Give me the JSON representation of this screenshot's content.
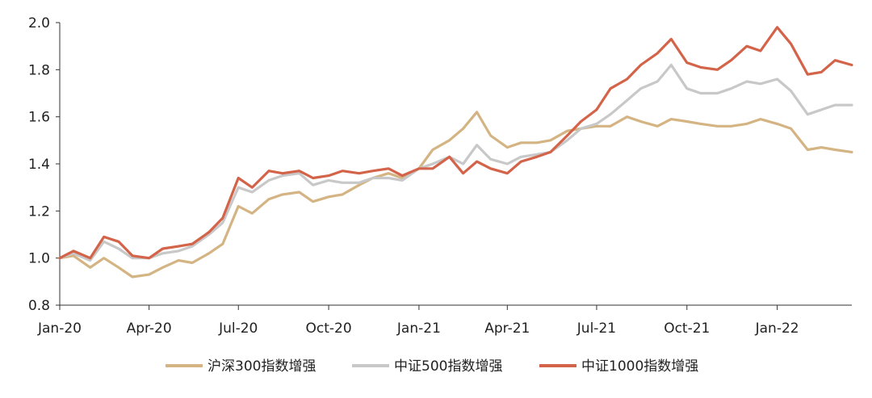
{
  "chart_data": {
    "type": "line",
    "title": "",
    "xlabel": "",
    "ylabel": "",
    "ylim": [
      0.8,
      2.0
    ],
    "yticks": [
      0.8,
      1.0,
      1.2,
      1.4,
      1.6,
      1.8,
      2.0
    ],
    "ytick_labels": [
      "0.8",
      "1.0",
      "1.2",
      "1.4",
      "1.6",
      "1.8",
      "2.0"
    ],
    "xlim": [
      "2020-01-01",
      "2022-03-18"
    ],
    "xticks": [
      "2020-01-01",
      "2020-04-01",
      "2020-07-01",
      "2020-10-01",
      "2021-01-01",
      "2021-04-01",
      "2021-07-01",
      "2021-10-01",
      "2022-01-01"
    ],
    "xtick_labels": [
      "Jan-20",
      "Apr-20",
      "Jul-20",
      "Oct-20",
      "Jan-21",
      "Apr-21",
      "Jul-21",
      "Oct-21",
      "Jan-22"
    ],
    "grid": false,
    "legend_position": "bottom",
    "x": [
      "2020-01-01",
      "2020-01-15",
      "2020-02-01",
      "2020-02-15",
      "2020-03-01",
      "2020-03-15",
      "2020-04-01",
      "2020-04-15",
      "2020-05-01",
      "2020-05-15",
      "2020-06-01",
      "2020-06-15",
      "2020-07-01",
      "2020-07-15",
      "2020-08-01",
      "2020-08-15",
      "2020-09-01",
      "2020-09-15",
      "2020-10-01",
      "2020-10-15",
      "2020-11-01",
      "2020-11-15",
      "2020-12-01",
      "2020-12-15",
      "2021-01-01",
      "2021-01-15",
      "2021-02-01",
      "2021-02-15",
      "2021-03-01",
      "2021-03-15",
      "2021-04-01",
      "2021-04-15",
      "2021-05-01",
      "2021-05-15",
      "2021-06-01",
      "2021-06-15",
      "2021-07-01",
      "2021-07-15",
      "2021-08-01",
      "2021-08-15",
      "2021-09-01",
      "2021-09-15",
      "2021-10-01",
      "2021-10-15",
      "2021-11-01",
      "2021-11-15",
      "2021-12-01",
      "2021-12-15",
      "2022-01-01",
      "2022-01-15",
      "2022-02-01",
      "2022-02-15",
      "2022-03-01",
      "2022-03-18"
    ],
    "series": [
      {
        "name": "沪深300指数增强",
        "color": "#D4B483",
        "values": [
          1.0,
          1.01,
          0.96,
          1.0,
          0.96,
          0.92,
          0.93,
          0.96,
          0.99,
          0.98,
          1.02,
          1.06,
          1.22,
          1.19,
          1.25,
          1.27,
          1.28,
          1.24,
          1.26,
          1.27,
          1.31,
          1.34,
          1.36,
          1.34,
          1.38,
          1.46,
          1.5,
          1.55,
          1.62,
          1.52,
          1.47,
          1.49,
          1.49,
          1.5,
          1.54,
          1.55,
          1.56,
          1.56,
          1.6,
          1.58,
          1.56,
          1.59,
          1.58,
          1.57,
          1.56,
          1.56,
          1.57,
          1.59,
          1.57,
          1.55,
          1.46,
          1.47,
          1.46,
          1.45
        ]
      },
      {
        "name": "中证500指数增强",
        "color": "#C8C8C8",
        "values": [
          1.0,
          1.02,
          0.99,
          1.07,
          1.04,
          1.0,
          1.0,
          1.02,
          1.03,
          1.05,
          1.1,
          1.15,
          1.3,
          1.28,
          1.33,
          1.35,
          1.36,
          1.31,
          1.33,
          1.32,
          1.32,
          1.34,
          1.34,
          1.33,
          1.38,
          1.4,
          1.43,
          1.4,
          1.48,
          1.42,
          1.4,
          1.43,
          1.44,
          1.45,
          1.5,
          1.55,
          1.57,
          1.61,
          1.67,
          1.72,
          1.75,
          1.82,
          1.72,
          1.7,
          1.7,
          1.72,
          1.75,
          1.74,
          1.76,
          1.71,
          1.61,
          1.63,
          1.65,
          1.65
        ]
      },
      {
        "name": "中证1000指数增强",
        "color": "#D3644A",
        "values": [
          1.0,
          1.03,
          1.0,
          1.09,
          1.07,
          1.01,
          1.0,
          1.04,
          1.05,
          1.06,
          1.11,
          1.17,
          1.34,
          1.3,
          1.37,
          1.36,
          1.37,
          1.34,
          1.35,
          1.37,
          1.36,
          1.37,
          1.38,
          1.35,
          1.38,
          1.38,
          1.43,
          1.36,
          1.41,
          1.38,
          1.36,
          1.41,
          1.43,
          1.45,
          1.52,
          1.58,
          1.63,
          1.72,
          1.76,
          1.82,
          1.87,
          1.93,
          1.83,
          1.81,
          1.8,
          1.84,
          1.9,
          1.88,
          1.98,
          1.91,
          1.78,
          1.79,
          1.84,
          1.82
        ]
      }
    ]
  }
}
